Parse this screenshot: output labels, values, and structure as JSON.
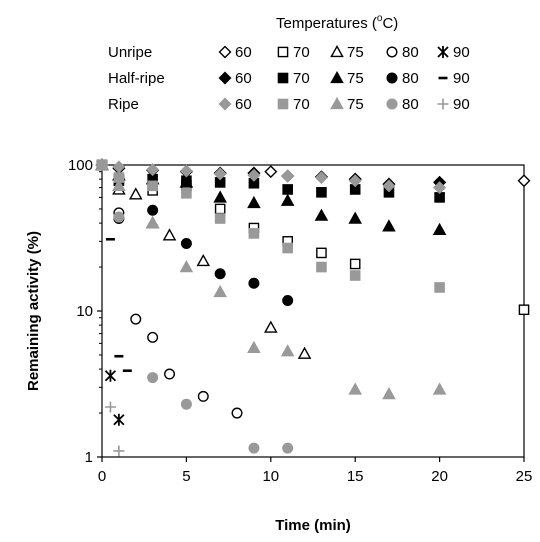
{
  "chart_data": {
    "type": "scatter",
    "xlabel": "Time (min)",
    "ylabel": "Remaining activity (%)",
    "xlim": [
      0,
      25
    ],
    "ylim": [
      1,
      100
    ],
    "yscale": "log",
    "x_ticks": [
      0,
      5,
      10,
      15,
      20,
      25
    ],
    "y_ticks": [
      1,
      10,
      100
    ],
    "grid": false,
    "legend": {
      "title_parts": [
        "Temperatures (",
        "o",
        "C)"
      ],
      "placement": "top",
      "rows": [
        {
          "label": "Unripe",
          "color": "#000000"
        },
        {
          "label": "Half-ripe",
          "color": "#000000"
        },
        {
          "label": "Ripe",
          "color": "#999999"
        }
      ],
      "temperatures": [
        "60",
        "70",
        "75",
        "80",
        "90"
      ]
    },
    "series": [
      {
        "ripeness": "Unripe",
        "temperature": "60",
        "marker": "diamond",
        "fill": "open",
        "color": "#000000",
        "x": [
          0,
          1,
          3,
          5,
          7,
          9,
          10,
          11,
          13,
          15,
          17,
          20,
          25
        ],
        "y": [
          100,
          95,
          92,
          90,
          88,
          88,
          90,
          84,
          83,
          80,
          74,
          76,
          78
        ]
      },
      {
        "ripeness": "Unripe",
        "temperature": "70",
        "marker": "square",
        "fill": "open",
        "color": "#000000",
        "x": [
          0,
          1,
          3,
          5,
          7,
          9,
          11,
          13,
          15,
          25
        ],
        "y": [
          100,
          78,
          67,
          72,
          50,
          37,
          30,
          25,
          21,
          10.2
        ]
      },
      {
        "ripeness": "Unripe",
        "temperature": "75",
        "marker": "triangle",
        "fill": "open",
        "color": "#000000",
        "x": [
          0,
          1,
          2,
          3,
          4,
          6,
          10,
          12
        ],
        "y": [
          100,
          68,
          63,
          40,
          33,
          22,
          7.7,
          5.1
        ]
      },
      {
        "ripeness": "Unripe",
        "temperature": "80",
        "marker": "circle",
        "fill": "open",
        "color": "#000000",
        "x": [
          1,
          2,
          3,
          4,
          6,
          8
        ],
        "y": [
          47,
          8.8,
          6.6,
          3.7,
          2.6,
          2.0
        ]
      },
      {
        "ripeness": "Unripe",
        "temperature": "90",
        "marker": "star",
        "fill": "filled",
        "color": "#000000",
        "x": [
          0.5,
          1
        ],
        "y": [
          3.6,
          1.8
        ]
      },
      {
        "ripeness": "Half-ripe",
        "temperature": "60",
        "marker": "diamond",
        "fill": "filled",
        "color": "#000000",
        "x": [
          0,
          1,
          3,
          5,
          7,
          9,
          11,
          13,
          15,
          17,
          20
        ],
        "y": [
          100,
          95,
          92,
          90,
          88,
          88,
          84,
          83,
          80,
          74,
          76
        ]
      },
      {
        "ripeness": "Half-ripe",
        "temperature": "70",
        "marker": "square",
        "fill": "filled",
        "color": "#000000",
        "x": [
          0,
          1,
          3,
          5,
          7,
          9,
          11,
          13,
          15,
          17,
          20
        ],
        "y": [
          100,
          80,
          80,
          78,
          76,
          75,
          68,
          65,
          68,
          65,
          60
        ]
      },
      {
        "ripeness": "Half-ripe",
        "temperature": "75",
        "marker": "triangle",
        "fill": "filled",
        "color": "#000000",
        "x": [
          0,
          1,
          3,
          5,
          7,
          9,
          11,
          13,
          15,
          17,
          20
        ],
        "y": [
          100,
          85,
          80,
          76,
          60,
          55,
          57,
          45,
          43,
          38,
          36
        ]
      },
      {
        "ripeness": "Half-ripe",
        "temperature": "80",
        "marker": "circle",
        "fill": "filled",
        "color": "#000000",
        "x": [
          1,
          3,
          5,
          7,
          9,
          11
        ],
        "y": [
          43,
          49,
          29,
          18,
          15.5,
          11.8
        ]
      },
      {
        "ripeness": "Half-ripe",
        "temperature": "90",
        "marker": "dash",
        "fill": "filled",
        "color": "#000000",
        "x": [
          0.5,
          1,
          1.5
        ],
        "y": [
          31,
          4.9,
          3.9
        ]
      },
      {
        "ripeness": "Ripe",
        "temperature": "60",
        "marker": "diamond",
        "fill": "filled",
        "color": "#999999",
        "x": [
          0,
          1,
          3,
          5,
          7,
          9,
          11,
          13,
          15,
          17,
          20
        ],
        "y": [
          100,
          97,
          93,
          91,
          87,
          85,
          84,
          82,
          78,
          72,
          70
        ]
      },
      {
        "ripeness": "Ripe",
        "temperature": "70",
        "marker": "square",
        "fill": "filled",
        "color": "#999999",
        "x": [
          0,
          1,
          3,
          5,
          7,
          9,
          11,
          13,
          15,
          20
        ],
        "y": [
          100,
          82,
          72,
          64,
          43,
          34,
          27,
          20,
          17.5,
          14.5
        ]
      },
      {
        "ripeness": "Ripe",
        "temperature": "75",
        "marker": "triangle",
        "fill": "filled",
        "color": "#999999",
        "x": [
          0,
          1,
          3,
          5,
          7,
          9,
          11,
          15,
          17,
          20
        ],
        "y": [
          100,
          72,
          40,
          20,
          13.5,
          5.6,
          5.3,
          2.9,
          2.7,
          2.9
        ]
      },
      {
        "ripeness": "Ripe",
        "temperature": "80",
        "marker": "circle",
        "fill": "filled",
        "color": "#999999",
        "x": [
          1,
          3,
          5,
          9,
          11
        ],
        "y": [
          44,
          3.5,
          2.3,
          1.15,
          1.15
        ]
      },
      {
        "ripeness": "Ripe",
        "temperature": "90",
        "marker": "plus",
        "fill": "filled",
        "color": "#999999",
        "x": [
          0.5,
          1
        ],
        "y": [
          2.2,
          1.1
        ]
      }
    ]
  }
}
